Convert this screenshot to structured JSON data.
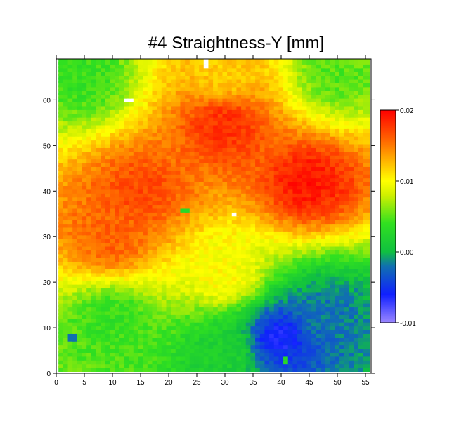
{
  "chart_data": {
    "type": "heatmap",
    "title": "#4 Straightness-Y [mm]",
    "xlabel": "",
    "ylabel": "",
    "xlim": [
      0,
      56
    ],
    "ylim": [
      0,
      69
    ],
    "x_ticks": [
      0,
      5,
      10,
      15,
      20,
      25,
      30,
      35,
      40,
      45,
      50,
      55
    ],
    "y_ticks": [
      0,
      10,
      20,
      30,
      40,
      50,
      60
    ],
    "grid_extent": {
      "x": [
        1,
        55
      ],
      "y": [
        1,
        68
      ]
    },
    "colorbar": {
      "min": -0.01,
      "max": 0.02,
      "ticks": [
        {
          "value": 0.02,
          "label": "0.02"
        },
        {
          "value": 0.01,
          "label": "0.01"
        },
        {
          "value": 0.0,
          "label": "0.00"
        },
        {
          "value": -0.01,
          "label": "-0.01"
        }
      ],
      "colormap": [
        {
          "value": -0.01,
          "color": "#9b87ff"
        },
        {
          "value": -0.006,
          "color": "#1020ff"
        },
        {
          "value": -0.002,
          "color": "#1070b0"
        },
        {
          "value": 0.0,
          "color": "#10c040"
        },
        {
          "value": 0.004,
          "color": "#30e020"
        },
        {
          "value": 0.008,
          "color": "#d0f000"
        },
        {
          "value": 0.01,
          "color": "#ffff00"
        },
        {
          "value": 0.013,
          "color": "#ffb000"
        },
        {
          "value": 0.016,
          "color": "#ff6000"
        },
        {
          "value": 0.02,
          "color": "#ff0000"
        }
      ]
    },
    "surface_description_points": [
      {
        "x": 5,
        "y": 65,
        "value": 0.004
      },
      {
        "x": 30,
        "y": 66,
        "value": 0.012
      },
      {
        "x": 50,
        "y": 66,
        "value": 0.005
      },
      {
        "x": 30,
        "y": 55,
        "value": 0.018
      },
      {
        "x": 45,
        "y": 42,
        "value": 0.019
      },
      {
        "x": 15,
        "y": 40,
        "value": 0.017
      },
      {
        "x": 10,
        "y": 30,
        "value": 0.016
      },
      {
        "x": 30,
        "y": 22,
        "value": 0.01
      },
      {
        "x": 10,
        "y": 12,
        "value": 0.004
      },
      {
        "x": 40,
        "y": 8,
        "value": -0.006
      },
      {
        "x": 48,
        "y": 13,
        "value": -0.002
      },
      {
        "x": 30,
        "y": 5,
        "value": 0.002
      }
    ],
    "missing_cells": [
      {
        "x": 13,
        "y": 60
      },
      {
        "x": 32,
        "y": 35
      },
      {
        "x": 27,
        "y": 68
      }
    ],
    "outlier_cells": [
      {
        "x": 23,
        "y": 36,
        "value": 0.003
      },
      {
        "x": 3,
        "y": 8,
        "value": -0.002
      },
      {
        "x": 41,
        "y": 3,
        "value": 0.003
      }
    ]
  }
}
